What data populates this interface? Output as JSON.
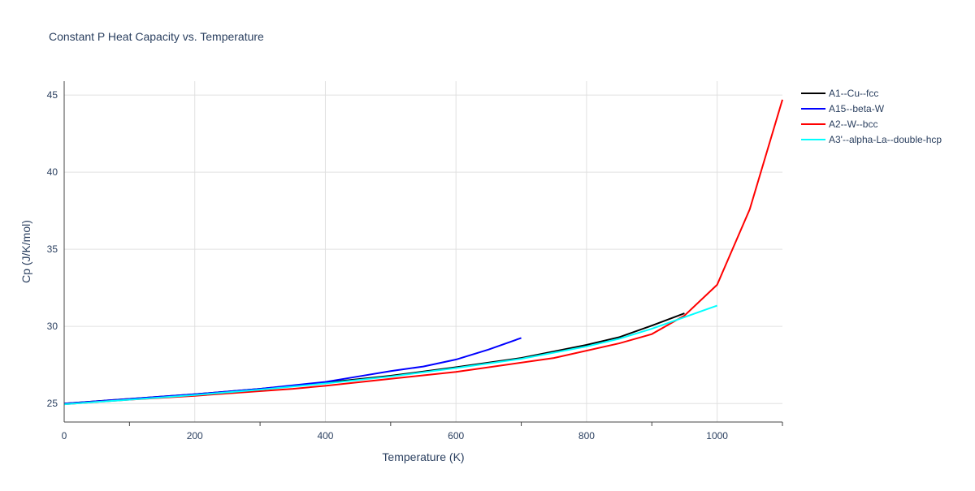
{
  "chart_data": {
    "type": "line",
    "title": "Constant P Heat Capacity vs. Temperature",
    "xlabel": "Temperature (K)",
    "ylabel": "Cp (J/K/mol)",
    "xlim": [
      0,
      1100
    ],
    "ylim": [
      23.8,
      45.9
    ],
    "xticks": [
      0,
      200,
      400,
      600,
      800,
      1000
    ],
    "yticks": [
      25,
      30,
      35,
      40,
      45
    ],
    "grid": true,
    "legend": "right",
    "series": [
      {
        "name": "A1--Cu--fcc",
        "color": "#000000",
        "x": [
          0,
          100,
          200,
          300,
          400,
          500,
          600,
          700,
          800,
          850,
          900,
          950
        ],
        "y": [
          25.0,
          25.3,
          25.6,
          25.95,
          26.35,
          26.8,
          27.35,
          27.95,
          28.8,
          29.3,
          30.05,
          30.85
        ]
      },
      {
        "name": "A15--beta-W",
        "color": "#0000ff",
        "x": [
          0,
          100,
          200,
          300,
          400,
          450,
          500,
          550,
          600,
          650,
          700
        ],
        "y": [
          25.0,
          25.3,
          25.6,
          25.95,
          26.4,
          26.75,
          27.1,
          27.4,
          27.85,
          28.5,
          29.25
        ]
      },
      {
        "name": "A2--W--bcc",
        "color": "#ff0000",
        "x": [
          0,
          100,
          200,
          350,
          400,
          500,
          600,
          750,
          850,
          900,
          950,
          1000,
          1050,
          1100
        ],
        "y": [
          24.95,
          25.25,
          25.5,
          25.95,
          26.15,
          26.6,
          27.05,
          27.95,
          28.9,
          29.5,
          30.7,
          32.7,
          37.6,
          44.7
        ]
      },
      {
        "name": "A3'--alpha-La--double-hcp",
        "color": "#00ffff",
        "x": [
          0,
          100,
          200,
          300,
          400,
          500,
          600,
          700,
          800,
          850,
          900,
          950,
          1000
        ],
        "y": [
          24.95,
          25.25,
          25.55,
          25.9,
          26.3,
          26.75,
          27.3,
          27.9,
          28.7,
          29.2,
          29.85,
          30.6,
          31.35
        ]
      }
    ]
  }
}
